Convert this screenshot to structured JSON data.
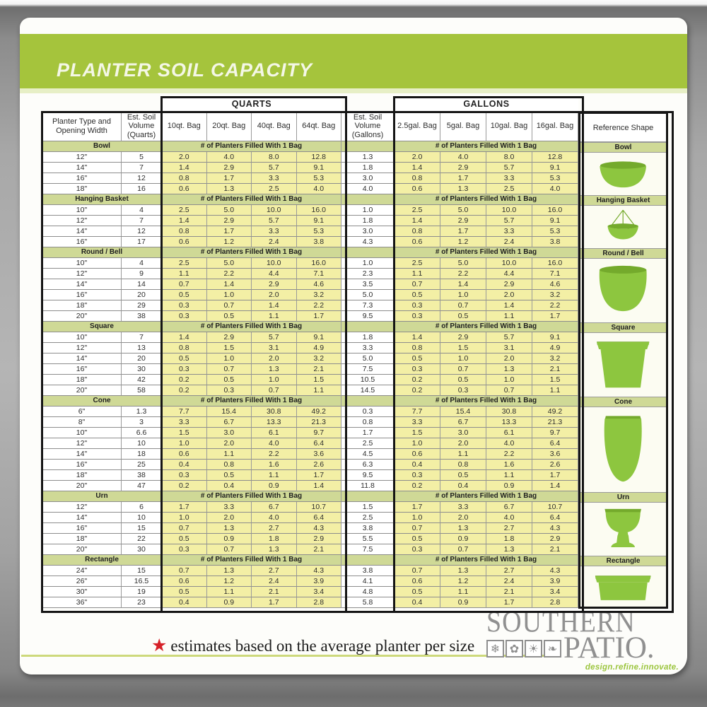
{
  "header": {
    "title": "PLANTER SOIL CAPACITY"
  },
  "colors": {
    "accent_green": "#a5c43c",
    "band_olive": "#cfd996",
    "cell_yellow": "#f3efa5",
    "planter_green": "#8dc63f",
    "planter_dark_green": "#74aa2c",
    "star_red": "#d62128",
    "logo_gray": "#909090",
    "tagline_green": "#9bc53d"
  },
  "chart_data": {
    "type": "table",
    "title": "PLANTER SOIL CAPACITY",
    "column_groups": [
      "QUARTS",
      "GALLONS"
    ],
    "columns": {
      "planter_type": "Planter Type and Opening Width",
      "est_qt": "Est. Soil Volume (Quarts)",
      "est_gal": "Est. Soil Volume (Gallons)",
      "reference": "Reference Shape"
    },
    "quart_bags": [
      "10qt. Bag",
      "20qt. Bag",
      "40qt. Bag",
      "64qt. Bag"
    ],
    "gallon_bags": [
      "2.5gal. Bag",
      "5gal. Bag",
      "10gal. Bag",
      "16gal. Bag"
    ],
    "fills_header": "# of Planters Filled With 1 Bag",
    "sections": [
      {
        "name": "Bowl",
        "shape": "bowl",
        "rows": [
          {
            "opening_width": "12\"",
            "est_qt": "5",
            "est_gal": "1.3",
            "fills": [
              "2.0",
              "4.0",
              "8.0",
              "12.8"
            ]
          },
          {
            "opening_width": "14\"",
            "est_qt": "7",
            "est_gal": "1.8",
            "fills": [
              "1.4",
              "2.9",
              "5.7",
              "9.1"
            ]
          },
          {
            "opening_width": "16\"",
            "est_qt": "12",
            "est_gal": "3.0",
            "fills": [
              "0.8",
              "1.7",
              "3.3",
              "5.3"
            ]
          },
          {
            "opening_width": "18\"",
            "est_qt": "16",
            "est_gal": "4.0",
            "fills": [
              "0.6",
              "1.3",
              "2.5",
              "4.0"
            ]
          }
        ]
      },
      {
        "name": "Hanging Basket",
        "shape": "hanging-basket",
        "rows": [
          {
            "opening_width": "10\"",
            "est_qt": "4",
            "est_gal": "1.0",
            "fills": [
              "2.5",
              "5.0",
              "10.0",
              "16.0"
            ]
          },
          {
            "opening_width": "12\"",
            "est_qt": "7",
            "est_gal": "1.8",
            "fills": [
              "1.4",
              "2.9",
              "5.7",
              "9.1"
            ]
          },
          {
            "opening_width": "14\"",
            "est_qt": "12",
            "est_gal": "3.0",
            "fills": [
              "0.8",
              "1.7",
              "3.3",
              "5.3"
            ]
          },
          {
            "opening_width": "16\"",
            "est_qt": "17",
            "est_gal": "4.3",
            "fills": [
              "0.6",
              "1.2",
              "2.4",
              "3.8"
            ]
          }
        ]
      },
      {
        "name": "Round / Bell",
        "shape": "round-bell",
        "rows": [
          {
            "opening_width": "10\"",
            "est_qt": "4",
            "est_gal": "1.0",
            "fills": [
              "2.5",
              "5.0",
              "10.0",
              "16.0"
            ]
          },
          {
            "opening_width": "12\"",
            "est_qt": "9",
            "est_gal": "2.3",
            "fills": [
              "1.1",
              "2.2",
              "4.4",
              "7.1"
            ]
          },
          {
            "opening_width": "14\"",
            "est_qt": "14",
            "est_gal": "3.5",
            "fills": [
              "0.7",
              "1.4",
              "2.9",
              "4.6"
            ]
          },
          {
            "opening_width": "16\"",
            "est_qt": "20",
            "est_gal": "5.0",
            "fills": [
              "0.5",
              "1.0",
              "2.0",
              "3.2"
            ]
          },
          {
            "opening_width": "18\"",
            "est_qt": "29",
            "est_gal": "7.3",
            "fills": [
              "0.3",
              "0.7",
              "1.4",
              "2.2"
            ]
          },
          {
            "opening_width": "20\"",
            "est_qt": "38",
            "est_gal": "9.5",
            "fills": [
              "0.3",
              "0.5",
              "1.1",
              "1.7"
            ]
          }
        ]
      },
      {
        "name": "Square",
        "shape": "square",
        "rows": [
          {
            "opening_width": "10\"",
            "est_qt": "7",
            "est_gal": "1.8",
            "fills": [
              "1.4",
              "2.9",
              "5.7",
              "9.1"
            ]
          },
          {
            "opening_width": "12\"",
            "est_qt": "13",
            "est_gal": "3.3",
            "fills": [
              "0.8",
              "1.5",
              "3.1",
              "4.9"
            ]
          },
          {
            "opening_width": "14\"",
            "est_qt": "20",
            "est_gal": "5.0",
            "fills": [
              "0.5",
              "1.0",
              "2.0",
              "3.2"
            ]
          },
          {
            "opening_width": "16\"",
            "est_qt": "30",
            "est_gal": "7.5",
            "fills": [
              "0.3",
              "0.7",
              "1.3",
              "2.1"
            ]
          },
          {
            "opening_width": "18\"",
            "est_qt": "42",
            "est_gal": "10.5",
            "fills": [
              "0.2",
              "0.5",
              "1.0",
              "1.5"
            ]
          },
          {
            "opening_width": "20\"",
            "est_qt": "58",
            "est_gal": "14.5",
            "fills": [
              "0.2",
              "0.3",
              "0.7",
              "1.1"
            ]
          }
        ]
      },
      {
        "name": "Cone",
        "shape": "cone",
        "rows": [
          {
            "opening_width": "6\"",
            "est_qt": "1.3",
            "est_gal": "0.3",
            "fills": [
              "7.7",
              "15.4",
              "30.8",
              "49.2"
            ]
          },
          {
            "opening_width": "8\"",
            "est_qt": "3",
            "est_gal": "0.8",
            "fills": [
              "3.3",
              "6.7",
              "13.3",
              "21.3"
            ]
          },
          {
            "opening_width": "10\"",
            "est_qt": "6.6",
            "est_gal": "1.7",
            "fills": [
              "1.5",
              "3.0",
              "6.1",
              "9.7"
            ]
          },
          {
            "opening_width": "12\"",
            "est_qt": "10",
            "est_gal": "2.5",
            "fills": [
              "1.0",
              "2.0",
              "4.0",
              "6.4"
            ]
          },
          {
            "opening_width": "14\"",
            "est_qt": "18",
            "est_gal": "4.5",
            "fills": [
              "0.6",
              "1.1",
              "2.2",
              "3.6"
            ]
          },
          {
            "opening_width": "16\"",
            "est_qt": "25",
            "est_gal": "6.3",
            "fills": [
              "0.4",
              "0.8",
              "1.6",
              "2.6"
            ]
          },
          {
            "opening_width": "18\"",
            "est_qt": "38",
            "est_gal": "9.5",
            "fills": [
              "0.3",
              "0.5",
              "1.1",
              "1.7"
            ]
          },
          {
            "opening_width": "20\"",
            "est_qt": "47",
            "est_gal": "11.8",
            "fills": [
              "0.2",
              "0.4",
              "0.9",
              "1.4"
            ]
          }
        ]
      },
      {
        "name": "Urn",
        "shape": "urn",
        "rows": [
          {
            "opening_width": "12\"",
            "est_qt": "6",
            "est_gal": "1.5",
            "fills": [
              "1.7",
              "3.3",
              "6.7",
              "10.7"
            ]
          },
          {
            "opening_width": "14\"",
            "est_qt": "10",
            "est_gal": "2.5",
            "fills": [
              "1.0",
              "2.0",
              "4.0",
              "6.4"
            ]
          },
          {
            "opening_width": "16\"",
            "est_qt": "15",
            "est_gal": "3.8",
            "fills": [
              "0.7",
              "1.3",
              "2.7",
              "4.3"
            ]
          },
          {
            "opening_width": "18\"",
            "est_qt": "22",
            "est_gal": "5.5",
            "fills": [
              "0.5",
              "0.9",
              "1.8",
              "2.9"
            ]
          },
          {
            "opening_width": "20\"",
            "est_qt": "30",
            "est_gal": "7.5",
            "fills": [
              "0.3",
              "0.7",
              "1.3",
              "2.1"
            ]
          }
        ]
      },
      {
        "name": "Rectangle",
        "shape": "rectangle",
        "rows": [
          {
            "opening_width": "24\"",
            "est_qt": "15",
            "est_gal": "3.8",
            "fills": [
              "0.7",
              "1.3",
              "2.7",
              "4.3"
            ]
          },
          {
            "opening_width": "26\"",
            "est_qt": "16.5",
            "est_gal": "4.1",
            "fills": [
              "0.6",
              "1.2",
              "2.4",
              "3.9"
            ]
          },
          {
            "opening_width": "30\"",
            "est_qt": "19",
            "est_gal": "4.8",
            "fills": [
              "0.5",
              "1.1",
              "2.1",
              "3.4"
            ]
          },
          {
            "opening_width": "36\"",
            "est_qt": "23",
            "est_gal": "5.8",
            "fills": [
              "0.4",
              "0.9",
              "1.7",
              "2.8"
            ]
          }
        ]
      }
    ]
  },
  "footer": {
    "star_glyph": "★",
    "note": "estimates based on the average planter per size"
  },
  "logo": {
    "line1": "SOUTHERN",
    "line2": "PATIO.",
    "tagline": "design.refine.innovate.",
    "icons": [
      {
        "name": "snowflake-icon",
        "glyph": "❄"
      },
      {
        "name": "flower-icon",
        "glyph": "✿"
      },
      {
        "name": "sun-icon",
        "glyph": "☀"
      },
      {
        "name": "leaf-icon",
        "glyph": "❧"
      }
    ]
  }
}
